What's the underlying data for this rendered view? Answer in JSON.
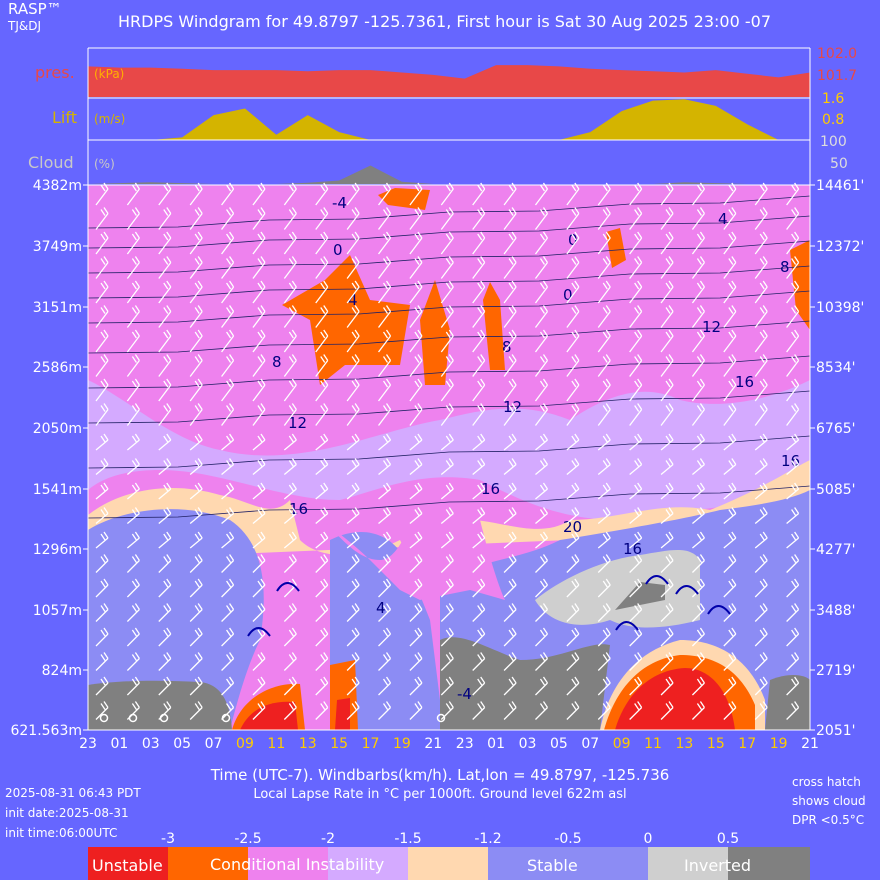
{
  "header": {
    "brand": "RASP™",
    "brand_sub": "TJ&DJ",
    "title": "HRDPS Windgram for 49.8797 -125.7361, First hour is Sat 30 Aug 2025 23:00 -07"
  },
  "panels": {
    "pressure": {
      "label": "pres.",
      "unit": "(kPa)",
      "ticks": [
        "102.0",
        "101.7"
      ],
      "color": "#e84848"
    },
    "lift": {
      "label": "Lift",
      "unit": "(m/s)",
      "ticks": [
        "1.6",
        "0.8"
      ],
      "color": "#d4b400"
    },
    "cloud": {
      "label": "Cloud",
      "unit": "(%)",
      "ticks": [
        "100",
        "50"
      ],
      "color": "#808080"
    }
  },
  "footer": {
    "x_caption": "Time (UTC-7). Windbarbs(km/h). Lat,lon = 49.8797, -125.736",
    "lapse_caption": "Local Lapse Rate in °C per 1000ft.    Ground level 622m asl",
    "run_time": "2025-08-31 06:43 PDT",
    "init_date": "init date:2025-08-31",
    "init_time": "init time:06:00UTC",
    "note_1": "cross hatch",
    "note_2": "shows cloud",
    "note_3": "DPR <0.5°C"
  },
  "legend": {
    "values": [
      "-3",
      "-2.5",
      "-2",
      "-1.5",
      "-1.2",
      "-0.5",
      "0",
      "0.5"
    ],
    "bands": [
      {
        "label": "Unstable",
        "color": "#ee2020"
      },
      {
        "label": "Conditional Instability",
        "color": "#ff6600"
      },
      {
        "label": "",
        "color": "#ee82ee"
      },
      {
        "label": "",
        "color": "#d4aaff"
      },
      {
        "label": "",
        "color": "#ffd8b0"
      },
      {
        "label": "Stable",
        "color": "#8c8cf4"
      },
      {
        "label": "Inverted",
        "color": "#cfcfcf"
      },
      {
        "label": "",
        "color": "#808080"
      }
    ]
  },
  "chart_data": {
    "type": "heatmap",
    "x_label": "Time (UTC-7)",
    "times": [
      "23",
      "01",
      "03",
      "05",
      "07",
      "09",
      "11",
      "13",
      "15",
      "17",
      "19",
      "21",
      "23",
      "01",
      "03",
      "05",
      "07",
      "09",
      "11",
      "13",
      "15",
      "17",
      "19",
      "21"
    ],
    "daytime_hours": [
      "09",
      "11",
      "13",
      "15",
      "17",
      "19"
    ],
    "y_levels_m": [
      "4382m",
      "3749m",
      "3151m",
      "2586m",
      "2050m",
      "1541m",
      "1296m",
      "1057m",
      "824m",
      "621.563m"
    ],
    "y_levels_ft": [
      "14461'",
      "12372'",
      "10398'",
      "8534'",
      "6765'",
      "5085'",
      "4277'",
      "3488'",
      "2719'",
      "2051'"
    ],
    "temperature_contours_c": [
      "-4",
      "0",
      "0",
      "4",
      "4",
      "0",
      "8",
      "8",
      "8",
      "12",
      "12",
      "12",
      "16",
      "16",
      "16",
      "16",
      "20",
      "16",
      "4"
    ],
    "pressure_kpa": [
      101.85,
      101.84,
      101.84,
      101.83,
      101.82,
      101.82,
      101.82,
      101.81,
      101.82,
      101.82,
      101.8,
      101.78,
      101.75,
      101.86,
      101.86,
      101.85,
      101.83,
      101.82,
      101.81,
      101.8,
      101.82,
      101.79,
      101.76,
      101.8
    ],
    "lift_ms": [
      0,
      0,
      0,
      0.1,
      0.95,
      1.2,
      0.2,
      0.95,
      0.3,
      0,
      0,
      0,
      0,
      0,
      0,
      0,
      0.3,
      1.1,
      1.5,
      1.55,
      1.3,
      0.6,
      0,
      0
    ],
    "cloud_pct": [
      0,
      2,
      4,
      2,
      0,
      0,
      0,
      3,
      8,
      42,
      5,
      0,
      0,
      0,
      0,
      0,
      0,
      0,
      0,
      4,
      2,
      0,
      0,
      0
    ]
  }
}
